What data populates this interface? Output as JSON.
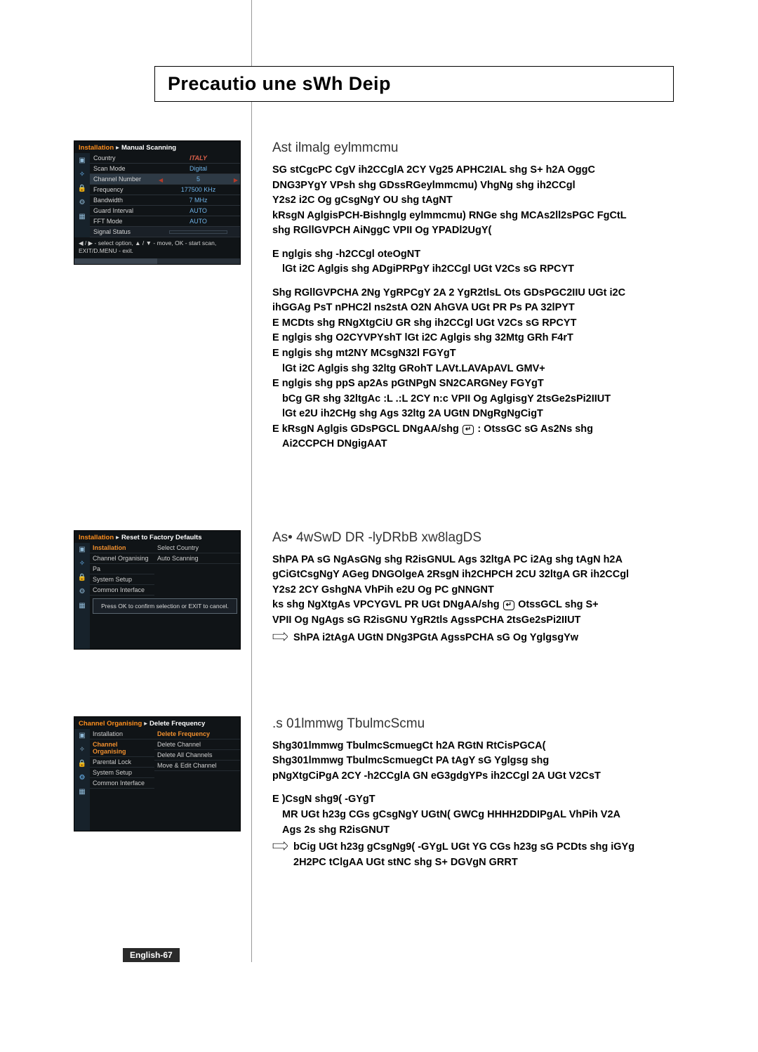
{
  "title": "Precautio une sWh Deip",
  "section1": {
    "heading": "Ast ilmalg eylmmcmu",
    "lines": [
      "SG stCgcPC CgV ih2CCglA 2CY Vg25 APHC2IAL shg S+ h2A OggC",
      "DNG3PYgY VPsh shg GDssRGeylmmcmu)   VhgNg shg ih2CCgl",
      "Y2s2 i2C Og gCsgNgY OU shg tAgNT",
      "kRsgN AglgisPCH-Bishnglg eylmmcmu)   RNGe shg MCAs2ll2sPGC FgCtL",
      "shg RGllGVPCH AiNggC VPII Og   YPADl2UgY(",
      "",
      "E nglgis shg -h2CCgl oteOgNT",
      "  lGt i2C Aglgis shg ADgiPRPgY ih2CCgl UGt V2Cs sG RPCYT",
      "",
      "Shg RGllGVPCHA 2Ng YgRPCgY 2A 2 YgR2tlsL Ots GDsPGC2IIU UGt i2C",
      "ihGGAg PsT nPHC2l ns2stA O2N AhGVA UGt PR Ps PA 32lPYT",
      "E MCDts shg RNgXtgCiU GR shg ih2CCgl UGt V2Cs sG RPCYT",
      "E nglgis shg O2CYVPYshT lGt i2C Aglgis shg 32Mtg GRh F4rT",
      "E nglgis shg mt2NY MCsgN32l FGYgT",
      "  lGt i2C Aglgis shg 32ltg GRohT  LAVt.LAVApAVL GMV+",
      "E nglgis shg ppS ap2As pGtNPgN SN2CARGNey FGYgT",
      "  bCg GR shg 32ltgAc :L .:L 2CY n:c VPII Og AglgisgY 2tsGe2sPi2IIUT",
      "  lGt e2U ih2CHg shg Ags 32ltg 2A UGtN DNgRgNgCigT"
    ],
    "enter_line_before": "E kRsgN Aglgis GDsPGCL DNgAA/shg",
    "enter_line_after": ":    OtssGC sG As2Ns shg",
    "enter_line2": "  Ai2CCPCH DNgigAAT"
  },
  "section2": {
    "heading": "As• 4wSwD DR -lyDRbB xw8lagDS",
    "lines": [
      "ShPA PA sG NgAsGNg shg R2isGNUL Ags 32ltgA PC i2Ag shg tAgN h2A",
      "gCiGtCsgNgY AGeg DNGOlgeA 2RsgN ih2CHPCH 2CU 32ltgA GR ih2CCgl",
      "Y2s2 2CY GshgNA VhPih e2U Og PC gNNGNT"
    ],
    "enter_before": "ks shg NgXtgAs VPCYGVL PR UGt DNgAA/shg",
    "enter_after": "  OtssGCL shg S+",
    "line4": "VPII Og NgAgs sG R2isGNU YgR2tls AgssPCHA 2tsGe2sPi2IIUT",
    "arrow": "ShPA i2tAgA UGtN DNg3PGtA AgssPCHA sG Og YglgsgYw"
  },
  "section3": {
    "heading": ".s 01lmmwg TbulmcScmu",
    "lines": [
      "Shg301lmmwg TbulmcScmuegCt h2A RGtN RtCisPGCA(",
      "Shg301lmmwg TbulmcScmuegCt PA tAgY sG Yglgsg shg",
      "pNgXtgCiPgA 2CY -h2CCglA GN eG3gdgYPs ih2CCgl 2A UGt V2CsT",
      "",
      "E )CsgN shg9( -GYgT",
      "  MR UGt h23g CGs gCsgNgY UGtN( GWCg HHHH2DDIPgAL VhPih V2A",
      "  Ags 2s shg R2isGNUT"
    ],
    "arrow": "bCig UGt h23g gCsgNg9( -GYgL UGt YG CGs h23g sG PCDts shg iGYg",
    "arrow2": "  2H2PC tClgAA UGt stNC shg S+ DGVgN GRRT"
  },
  "tv1": {
    "crumb_a": "Installation",
    "crumb_b": "Manual Scanning",
    "rows": [
      {
        "l": "Country",
        "r": "ITALY",
        "cls": "italy"
      },
      {
        "l": "Scan Mode",
        "r": "Digital"
      },
      {
        "l": "Channel Number",
        "r": "5",
        "sel": true,
        "arrows": true
      },
      {
        "l": "Frequency",
        "r": "177500 KHz"
      },
      {
        "l": "Bandwidth",
        "r": "7 MHz"
      },
      {
        "l": "Guard Interval",
        "r": "AUTO"
      },
      {
        "l": "FFT Mode",
        "r": "AUTO"
      },
      {
        "l": "Signal Status",
        "r": "",
        "bar": true
      }
    ],
    "help1": "◀ / ▶ - select option, ▲ / ▼ - move, OK - start scan,",
    "help2": "EXIT/D.MENU - exit."
  },
  "tv2": {
    "crumb_a": "Installation",
    "crumb_b": "Reset to Factory Defaults",
    "left": [
      "Installation",
      "Channel Organising",
      "Pa",
      "System Setup",
      "Common Interface"
    ],
    "right": [
      "Select Country",
      "Auto Scanning"
    ],
    "dialog": "Press OK to confirm selection or EXIT to cancel."
  },
  "tv3": {
    "crumb_a": "Channel Organising",
    "crumb_b": "Delete Frequency",
    "left": [
      "Installation",
      "Channel Organising",
      "Parental Lock",
      "System Setup",
      "Common Interface"
    ],
    "right": [
      "Delete Frequency",
      "Delete Channel",
      "Delete All Channels",
      "Move & Edit Channel"
    ]
  },
  "enter_label": "↵",
  "footer": "English-67"
}
